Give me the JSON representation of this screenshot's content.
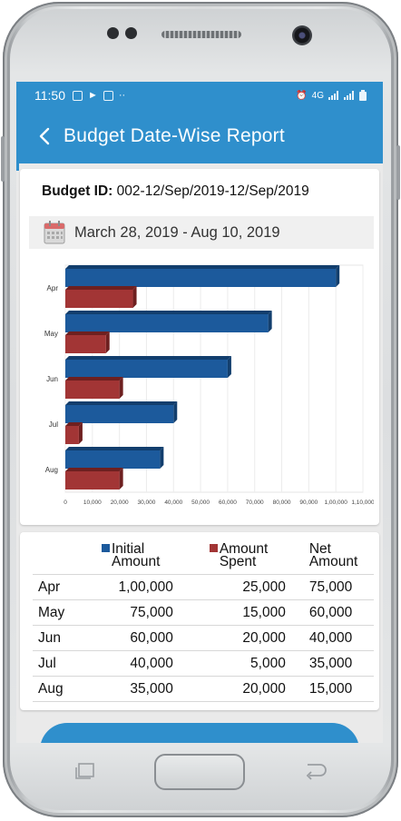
{
  "status_bar": {
    "time": "11:50",
    "network": "4G",
    "dots": "··"
  },
  "app_bar": {
    "title": "Budget Date-Wise Report"
  },
  "budget": {
    "id_label": "Budget ID:",
    "id_value": "002-12/Sep/2019-12/Sep/2019",
    "date_range": "March 28, 2019 - Aug 10, 2019"
  },
  "colors": {
    "accent": "#2f8fcc",
    "initial_amount": "#1c5a9c",
    "amount_spent": "#a23535"
  },
  "chart_data": {
    "type": "bar",
    "orientation": "horizontal",
    "categories": [
      "Apr",
      "May",
      "Jun",
      "Jul",
      "Aug"
    ],
    "series": [
      {
        "values": [
          100000,
          75000,
          60000,
          40000,
          35000
        ]
      },
      {
        "values": [
          25000,
          15000,
          20000,
          5000,
          20000
        ]
      }
    ],
    "xlim": [
      0,
      110000
    ],
    "xticks": [
      "0",
      "10,000",
      "20,000",
      "30,000",
      "40,000",
      "50,000",
      "60,000",
      "70,000",
      "80,000",
      "90,000",
      "1,00,000",
      "1,10,000"
    ],
    "grid": true
  },
  "table": {
    "headers": {
      "initial": [
        "Initial",
        "Amount"
      ],
      "spent": [
        "Amount",
        "Spent"
      ],
      "net": [
        "Net",
        "Amount"
      ]
    },
    "rows": [
      {
        "month": "Apr",
        "initial": "1,00,000",
        "spent": "25,000",
        "net": "75,000"
      },
      {
        "month": "May",
        "initial": "75,000",
        "spent": "15,000",
        "net": "60,000"
      },
      {
        "month": "Jun",
        "initial": "60,000",
        "spent": "20,000",
        "net": "40,000"
      },
      {
        "month": "Jul",
        "initial": "40,000",
        "spent": "5,000",
        "net": "35,000"
      },
      {
        "month": "Aug",
        "initial": "35,000",
        "spent": "20,000",
        "net": "15,000"
      }
    ]
  },
  "icons": {
    "back": "chevron-left-icon",
    "calendar": "calendar-icon",
    "home": "home-key",
    "recent": "recent-apps-icon",
    "nav_back": "back-arrow-icon"
  }
}
